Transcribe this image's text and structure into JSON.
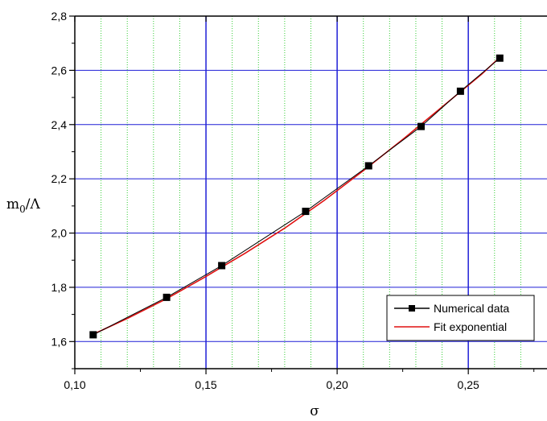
{
  "chart_data": {
    "type": "line",
    "title": "",
    "xlabel": "σ",
    "ylabel": {
      "main": "m",
      "sub": "0",
      "rest": "/Λ"
    },
    "xlim": [
      0.1,
      0.28
    ],
    "ylim": [
      1.5,
      2.8
    ],
    "x_major_ticks": [
      0.1,
      0.15,
      0.2,
      0.25
    ],
    "x_tick_labels": [
      "0,10",
      "0,15",
      "0,20",
      "0,25"
    ],
    "x_minor_grid": [
      0.11,
      0.12,
      0.13,
      0.14,
      0.16,
      0.17,
      0.18,
      0.19,
      0.21,
      0.22,
      0.23,
      0.24,
      0.26,
      0.27
    ],
    "y_major_ticks": [
      1.6,
      1.8,
      2.0,
      2.2,
      2.4,
      2.6,
      2.8
    ],
    "y_tick_labels": [
      "1,6",
      "1,8",
      "2,0",
      "2,2",
      "2,4",
      "2,6",
      "2,8"
    ],
    "grid": true,
    "colors": {
      "major_grid": "#1f1fd6",
      "minor_grid": "#33cc33",
      "data_line": "#000000",
      "fit_line": "#e01010",
      "marker": "#000000"
    },
    "legend_position": "bottom-right",
    "series": [
      {
        "name": "Numerical data",
        "style": "line+square-marker",
        "x": [
          0.107,
          0.135,
          0.156,
          0.188,
          0.212,
          0.232,
          0.247,
          0.262
        ],
        "y": [
          1.625,
          1.763,
          1.88,
          2.08,
          2.248,
          2.393,
          2.523,
          2.645
        ]
      },
      {
        "name": "Fit exponential",
        "style": "line",
        "x": [
          0.107,
          0.12,
          0.135,
          0.15,
          0.165,
          0.18,
          0.195,
          0.21,
          0.225,
          0.24,
          0.255,
          0.262
        ],
        "y": [
          1.627,
          1.685,
          1.758,
          1.84,
          1.926,
          2.018,
          2.12,
          2.23,
          2.345,
          2.465,
          2.585,
          2.648
        ]
      }
    ]
  }
}
